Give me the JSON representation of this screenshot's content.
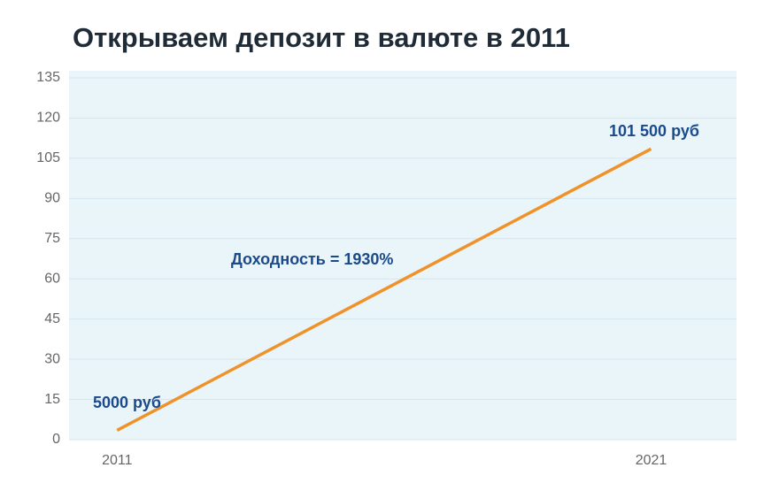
{
  "chart_data": {
    "type": "line",
    "title": "Открываем депозит в валюте в 2011",
    "x": [
      2011,
      2021
    ],
    "series": [
      {
        "color": "#f0922a",
        "values": [
          3.5,
          108.5
        ]
      }
    ],
    "xlim": [
      2010.1,
      2022.6
    ],
    "xticks": [
      2011,
      2021
    ],
    "ylim": [
      0,
      135
    ],
    "yticks": [
      0,
      15,
      30,
      45,
      60,
      75,
      90,
      105,
      120,
      135
    ],
    "grid": true,
    "annotations": [
      "5000 руб",
      "101 500 руб",
      "Доходность = 1930%"
    ]
  }
}
